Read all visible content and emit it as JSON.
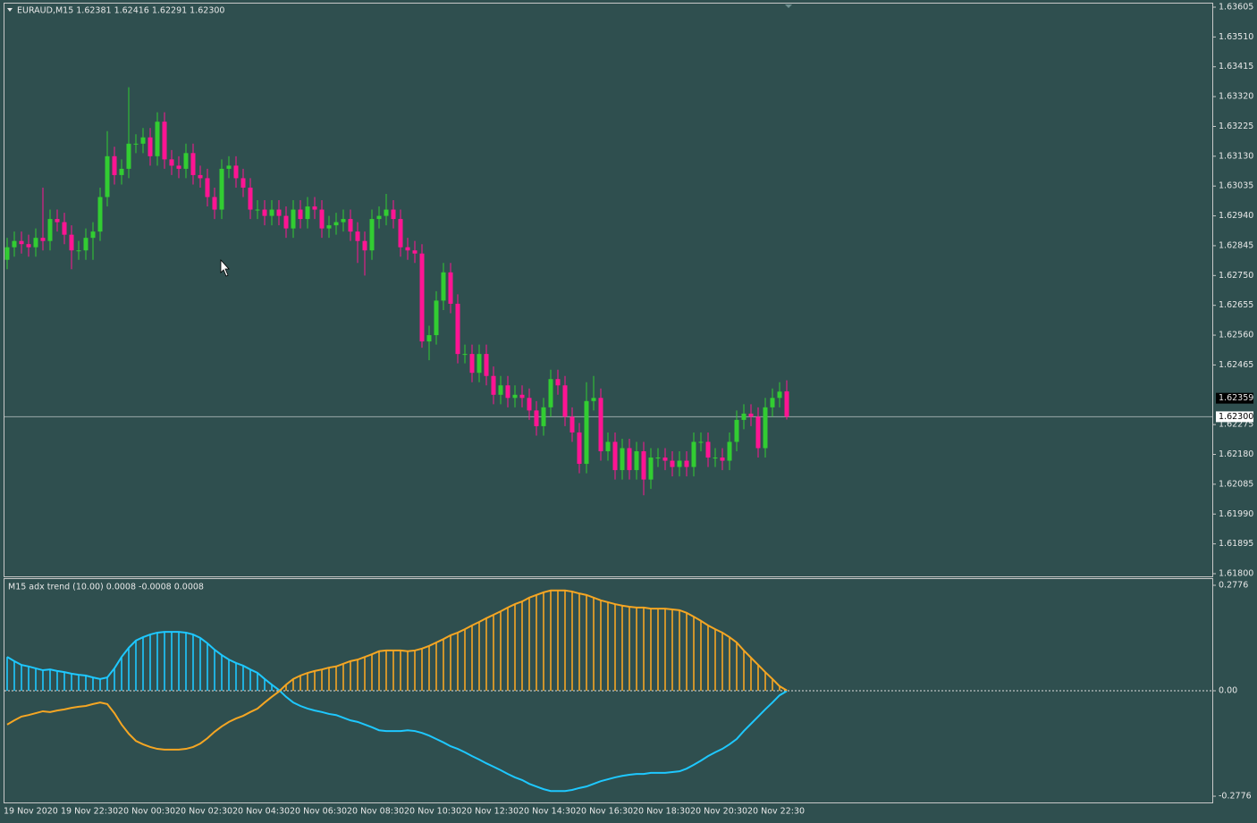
{
  "chart_data": [
    {
      "type": "candlestick",
      "title": "EURAUD,M15  1.62381 1.62416 1.62291 1.62300",
      "categories": [
        "19 Nov 2020",
        null,
        null,
        null,
        null,
        null,
        null,
        null,
        "19 Nov 22:30",
        null,
        null,
        null,
        null,
        null,
        null,
        null,
        "20 Nov 00:30",
        null,
        null,
        null,
        null,
        null,
        null,
        null,
        "20 Nov 02:30",
        null,
        null,
        null,
        null,
        null,
        null,
        null,
        "20 Nov 04:30",
        null,
        null,
        null,
        null,
        null,
        null,
        null,
        "20 Nov 06:30",
        null,
        null,
        null,
        null,
        null,
        null,
        null,
        "20 Nov 08:30",
        null,
        null,
        null,
        null,
        null,
        null,
        null,
        "20 Nov 10:30",
        null,
        null,
        null,
        null,
        null,
        null,
        null,
        "20 Nov 12:30",
        null,
        null,
        null,
        null,
        null,
        null,
        null,
        "20 Nov 14:30",
        null,
        null,
        null,
        null,
        null,
        null,
        null,
        "20 Nov 16:30",
        null,
        null,
        null,
        null,
        null,
        null,
        null,
        "20 Nov 18:30",
        null,
        null,
        null,
        null,
        null,
        null,
        null,
        "20 Nov 20:30",
        null,
        null,
        null,
        null,
        null,
        null,
        null,
        "20 Nov 22:30",
        null,
        null,
        null,
        null,
        null
      ],
      "open": [
        1.628,
        1.6284,
        1.6286,
        1.6285,
        1.6284,
        1.6287,
        1.6286,
        1.6293,
        1.6292,
        1.6288,
        1.6283,
        1.6283,
        1.6287,
        1.6289,
        1.63,
        1.6313,
        1.6307,
        1.6309,
        1.6317,
        1.6317,
        1.6319,
        1.6313,
        1.6324,
        1.6312,
        1.631,
        1.6309,
        1.6314,
        1.6307,
        1.6306,
        1.63,
        1.6296,
        1.6309,
        1.631,
        1.6306,
        1.6303,
        1.6296,
        1.6296,
        1.6294,
        1.6296,
        1.6294,
        1.629,
        1.6296,
        1.6293,
        1.6297,
        1.6296,
        1.629,
        1.6291,
        1.6292,
        1.6293,
        1.6289,
        1.6286,
        1.6283,
        1.6293,
        1.6294,
        1.6296,
        1.6293,
        1.6284,
        1.6283,
        1.6282,
        1.6254,
        1.6256,
        1.6267,
        1.6276,
        1.6266,
        1.625,
        1.625,
        1.6244,
        1.625,
        1.6243,
        1.6237,
        1.624,
        1.6236,
        1.6237,
        1.6236,
        1.6232,
        1.6227,
        1.6233,
        1.6242,
        1.624,
        1.623,
        1.6225,
        1.6215,
        1.6235,
        1.6236,
        1.6219,
        1.6222,
        1.6213,
        1.622,
        1.6213,
        1.6219,
        1.621,
        1.6217,
        1.6217,
        1.6216,
        1.6214,
        1.6216,
        1.6214,
        1.6222,
        1.6222,
        1.6217,
        1.6217,
        1.6216,
        1.6222,
        1.6229,
        1.6231,
        1.623,
        1.622,
        1.6233,
        1.6236,
        1.62381
      ],
      "high": [
        1.6287,
        1.6289,
        1.6289,
        1.6288,
        1.629,
        1.6303,
        1.6296,
        1.6296,
        1.6295,
        1.6291,
        1.6286,
        1.629,
        1.6292,
        1.6303,
        1.6321,
        1.6316,
        1.6312,
        1.6335,
        1.632,
        1.6322,
        1.6322,
        1.6327,
        1.6327,
        1.6315,
        1.6313,
        1.6317,
        1.6317,
        1.631,
        1.6309,
        1.6303,
        1.6312,
        1.6313,
        1.6313,
        1.6309,
        1.6306,
        1.6299,
        1.6299,
        1.6299,
        1.6299,
        1.6297,
        1.6299,
        1.6299,
        1.63,
        1.63,
        1.6299,
        1.6294,
        1.6295,
        1.6296,
        1.6296,
        1.6292,
        1.6289,
        1.6296,
        1.6297,
        1.6301,
        1.6299,
        1.6296,
        1.6287,
        1.6286,
        1.6285,
        1.6259,
        1.627,
        1.6279,
        1.6279,
        1.6269,
        1.6253,
        1.6253,
        1.6253,
        1.6253,
        1.6246,
        1.6243,
        1.6243,
        1.624,
        1.624,
        1.6239,
        1.6235,
        1.6236,
        1.6245,
        1.6245,
        1.6243,
        1.6233,
        1.6228,
        1.6241,
        1.6243,
        1.6239,
        1.6225,
        1.6225,
        1.6223,
        1.6223,
        1.6222,
        1.6222,
        1.622,
        1.622,
        1.622,
        1.6219,
        1.6219,
        1.6219,
        1.6225,
        1.6225,
        1.6225,
        1.622,
        1.622,
        1.6225,
        1.6232,
        1.6234,
        1.6234,
        1.6233,
        1.6236,
        1.6239,
        1.6241,
        1.62416
      ],
      "low": [
        1.6277,
        1.6281,
        1.6282,
        1.6281,
        1.6281,
        1.6283,
        1.6283,
        1.6289,
        1.6285,
        1.6277,
        1.628,
        1.628,
        1.628,
        1.6286,
        1.6297,
        1.6304,
        1.6304,
        1.6306,
        1.6314,
        1.6314,
        1.631,
        1.631,
        1.6309,
        1.6307,
        1.6306,
        1.6306,
        1.6304,
        1.6303,
        1.6297,
        1.6293,
        1.6293,
        1.6306,
        1.6303,
        1.63,
        1.6293,
        1.6293,
        1.6291,
        1.6291,
        1.6291,
        1.6287,
        1.6287,
        1.629,
        1.629,
        1.6293,
        1.6287,
        1.6287,
        1.6288,
        1.6289,
        1.6286,
        1.6279,
        1.6275,
        1.628,
        1.629,
        1.6291,
        1.629,
        1.6281,
        1.628,
        1.6279,
        1.6252,
        1.6248,
        1.6253,
        1.6264,
        1.6263,
        1.6247,
        1.6247,
        1.6241,
        1.6241,
        1.624,
        1.6234,
        1.6234,
        1.6233,
        1.6233,
        1.6233,
        1.6229,
        1.6224,
        1.6224,
        1.623,
        1.6237,
        1.6227,
        1.6222,
        1.6212,
        1.6212,
        1.6232,
        1.6216,
        1.6216,
        1.621,
        1.621,
        1.621,
        1.621,
        1.6205,
        1.6207,
        1.6214,
        1.6213,
        1.6211,
        1.6211,
        1.6211,
        1.6211,
        1.6219,
        1.6214,
        1.6214,
        1.6213,
        1.6213,
        1.6219,
        1.6226,
        1.6227,
        1.6217,
        1.6217,
        1.623,
        1.6233,
        1.62291
      ],
      "close": [
        1.6284,
        1.6286,
        1.6285,
        1.6284,
        1.6287,
        1.6286,
        1.6293,
        1.6292,
        1.6288,
        1.6283,
        1.6283,
        1.6287,
        1.6289,
        1.63,
        1.6313,
        1.6307,
        1.6309,
        1.6317,
        1.6317,
        1.6319,
        1.6313,
        1.6324,
        1.6312,
        1.631,
        1.6309,
        1.6314,
        1.6307,
        1.6306,
        1.63,
        1.6296,
        1.6309,
        1.631,
        1.6306,
        1.6303,
        1.6296,
        1.6296,
        1.6294,
        1.6296,
        1.6294,
        1.629,
        1.6296,
        1.6293,
        1.6297,
        1.6296,
        1.629,
        1.6291,
        1.6292,
        1.6293,
        1.6289,
        1.6286,
        1.6283,
        1.6293,
        1.6294,
        1.6296,
        1.6293,
        1.6284,
        1.6283,
        1.6282,
        1.6254,
        1.6256,
        1.6267,
        1.6276,
        1.6266,
        1.625,
        1.625,
        1.6244,
        1.625,
        1.6243,
        1.6237,
        1.624,
        1.6236,
        1.6237,
        1.6236,
        1.6232,
        1.6227,
        1.6233,
        1.6242,
        1.624,
        1.623,
        1.6225,
        1.6215,
        1.6235,
        1.6236,
        1.6219,
        1.6222,
        1.6213,
        1.622,
        1.6213,
        1.6219,
        1.621,
        1.6217,
        1.6217,
        1.6216,
        1.6214,
        1.6216,
        1.6214,
        1.6222,
        1.6222,
        1.6217,
        1.6217,
        1.6216,
        1.6222,
        1.6229,
        1.6231,
        1.623,
        1.622,
        1.6233,
        1.6236,
        1.6238,
        1.623
      ],
      "up_color": "#32cd32",
      "down_color": "#ff1493",
      "ylim": [
        1.618,
        1.63605
      ],
      "yticks": [
        1.63605,
        {
          "value": 1.6351,
          "label": "1.63510"
        },
        1.63415,
        {
          "value": 1.6332,
          "label": "1.63320"
        },
        1.63225,
        {
          "value": 1.6313,
          "label": "1.63130"
        },
        1.63035,
        {
          "value": 1.6294,
          "label": "1.62940"
        },
        1.62845,
        {
          "value": 1.6275,
          "label": "1.62750"
        },
        1.62655,
        {
          "value": 1.6256,
          "label": "1.62560"
        },
        1.62465,
        1.62275,
        {
          "value": 1.6218,
          "label": "1.62180"
        },
        1.62085,
        {
          "value": 1.6199,
          "label": "1.61990"
        },
        1.61895,
        {
          "value": 1.618,
          "label": "1.61800"
        }
      ],
      "ask_price": 1.62359,
      "current_price": {
        "value": 1.623,
        "label": "1.62300"
      },
      "grid": false
    },
    {
      "type": "line",
      "title": "M15 adx trend (10.00) 0.0008 -0.0008 0.0008",
      "histogram": true,
      "series": [
        {
          "color": "#1ec8ff",
          "values": [
            0.089,
            0.078,
            0.068,
            0.064,
            0.059,
            0.054,
            0.056,
            0.052,
            0.049,
            0.045,
            0.042,
            0.04,
            0.035,
            0.031,
            0.035,
            0.059,
            0.089,
            0.113,
            0.132,
            0.141,
            0.148,
            0.153,
            0.155,
            0.155,
            0.155,
            0.153,
            0.148,
            0.139,
            0.125,
            0.108,
            0.094,
            0.082,
            0.073,
            0.066,
            0.056,
            0.047,
            0.031,
            0.016,
            0.002,
            -0.016,
            -0.031,
            -0.04,
            -0.047,
            -0.052,
            -0.056,
            -0.061,
            -0.064,
            -0.071,
            -0.078,
            -0.082,
            -0.089,
            -0.096,
            -0.104,
            -0.106,
            -0.106,
            -0.106,
            -0.104,
            -0.106,
            -0.111,
            -0.118,
            -0.127,
            -0.136,
            -0.146,
            -0.153,
            -0.162,
            -0.172,
            -0.181,
            -0.191,
            -0.2,
            -0.209,
            -0.219,
            -0.228,
            -0.235,
            -0.245,
            -0.252,
            -0.259,
            -0.264,
            -0.264,
            -0.264,
            -0.261,
            -0.256,
            -0.252,
            -0.245,
            -0.238,
            -0.233,
            -0.228,
            -0.224,
            -0.221,
            -0.219,
            -0.219,
            -0.216,
            -0.216,
            -0.216,
            -0.214,
            -0.212,
            -0.205,
            -0.195,
            -0.184,
            -0.172,
            -0.162,
            -0.153,
            -0.141,
            -0.127,
            -0.106,
            -0.087,
            -0.068,
            -0.049,
            -0.031,
            -0.012,
            -0.0008
          ]
        },
        {
          "color": "#f5a623",
          "values": [
            -0.089,
            -0.078,
            -0.068,
            -0.064,
            -0.059,
            -0.054,
            -0.056,
            -0.052,
            -0.049,
            -0.045,
            -0.042,
            -0.04,
            -0.035,
            -0.031,
            -0.035,
            -0.059,
            -0.089,
            -0.113,
            -0.132,
            -0.141,
            -0.148,
            -0.153,
            -0.155,
            -0.155,
            -0.155,
            -0.153,
            -0.148,
            -0.139,
            -0.125,
            -0.108,
            -0.094,
            -0.082,
            -0.073,
            -0.066,
            -0.056,
            -0.047,
            -0.031,
            -0.016,
            -0.002,
            0.016,
            0.031,
            0.04,
            0.047,
            0.052,
            0.056,
            0.061,
            0.064,
            0.071,
            0.078,
            0.082,
            0.089,
            0.096,
            0.104,
            0.106,
            0.106,
            0.106,
            0.104,
            0.106,
            0.111,
            0.118,
            0.127,
            0.136,
            0.146,
            0.153,
            0.162,
            0.172,
            0.181,
            0.191,
            0.2,
            0.209,
            0.219,
            0.228,
            0.235,
            0.245,
            0.252,
            0.259,
            0.264,
            0.264,
            0.264,
            0.261,
            0.256,
            0.252,
            0.245,
            0.238,
            0.233,
            0.228,
            0.224,
            0.221,
            0.219,
            0.219,
            0.216,
            0.216,
            0.216,
            0.214,
            0.212,
            0.205,
            0.195,
            0.184,
            0.172,
            0.162,
            0.153,
            0.141,
            0.127,
            0.106,
            0.087,
            0.068,
            0.049,
            0.031,
            0.012,
            0.0008
          ]
        }
      ],
      "ylim": [
        -0.294,
        0.294
      ],
      "yticks": [
        0.2776,
        {
          "value": 0,
          "label": "0.00"
        },
        -0.2776
      ]
    }
  ]
}
